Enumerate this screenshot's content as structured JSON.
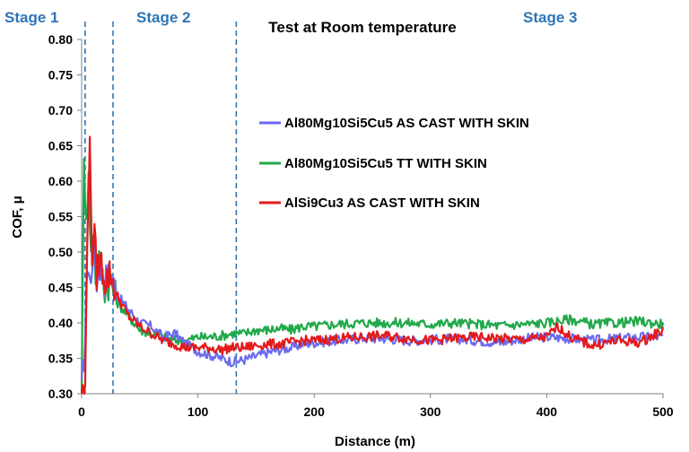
{
  "chart_data": {
    "type": "line",
    "title": "Test at Room temperature",
    "xlabel": "Distance (m)",
    "ylabel": "COF, μ",
    "xlim": [
      0,
      500
    ],
    "ylim": [
      0.3,
      0.8
    ],
    "x_ticks": [
      "0",
      "100",
      "200",
      "300",
      "400",
      "500"
    ],
    "y_ticks": [
      "0.30",
      "0.35",
      "0.40",
      "0.45",
      "0.50",
      "0.55",
      "0.60",
      "0.65",
      "0.70",
      "0.75",
      "0.80"
    ],
    "grid": false,
    "legend_placement": "center-right",
    "stages": [
      {
        "label": "Stage 1",
        "boundary_x": 3
      },
      {
        "label": "Stage  2",
        "boundary_x": 27
      },
      {
        "label": "Stage  3",
        "boundary_x": 133
      }
    ],
    "series": [
      {
        "name": "Al80Mg10Si5Cu5 AS CAST WITH SKIN",
        "color": "#6b6bf0",
        "x": [
          0,
          3,
          5,
          8,
          10,
          13,
          16,
          20,
          25,
          30,
          40,
          50,
          60,
          70,
          80,
          90,
          100,
          110,
          120,
          130,
          140,
          150,
          160,
          170,
          180,
          190,
          200,
          220,
          240,
          260,
          280,
          300,
          320,
          340,
          360,
          380,
          400,
          420,
          440,
          460,
          480,
          500
        ],
        "y": [
          0.3,
          0.38,
          0.49,
          0.45,
          0.52,
          0.46,
          0.48,
          0.46,
          0.47,
          0.44,
          0.42,
          0.4,
          0.395,
          0.38,
          0.385,
          0.37,
          0.36,
          0.355,
          0.35,
          0.345,
          0.348,
          0.353,
          0.358,
          0.362,
          0.365,
          0.37,
          0.372,
          0.375,
          0.378,
          0.378,
          0.375,
          0.376,
          0.378,
          0.375,
          0.372,
          0.378,
          0.38,
          0.378,
          0.375,
          0.378,
          0.38,
          0.38
        ]
      },
      {
        "name": "Al80Mg10Si5Cu5 TT WITH SKIN",
        "color": "#22a84a",
        "x": [
          0,
          2,
          4,
          6,
          8,
          10,
          12,
          15,
          20,
          25,
          30,
          40,
          50,
          60,
          70,
          80,
          90,
          100,
          110,
          120,
          130,
          140,
          150,
          160,
          170,
          180,
          190,
          200,
          220,
          240,
          260,
          280,
          300,
          320,
          340,
          360,
          380,
          400,
          420,
          440,
          460,
          480,
          500
        ],
        "y": [
          0.3,
          0.62,
          0.56,
          0.6,
          0.5,
          0.53,
          0.47,
          0.49,
          0.45,
          0.46,
          0.43,
          0.41,
          0.39,
          0.385,
          0.38,
          0.375,
          0.375,
          0.38,
          0.38,
          0.382,
          0.385,
          0.385,
          0.39,
          0.39,
          0.392,
          0.39,
          0.395,
          0.395,
          0.398,
          0.4,
          0.4,
          0.4,
          0.398,
          0.4,
          0.398,
          0.396,
          0.398,
          0.4,
          0.405,
          0.398,
          0.4,
          0.402,
          0.398
        ]
      },
      {
        "name": "AlSi9Cu3 AS CAST WITH SKIN",
        "color": "#e31a1c",
        "x": [
          0,
          3,
          5,
          7,
          9,
          11,
          13,
          16,
          20,
          25,
          30,
          40,
          50,
          60,
          70,
          80,
          90,
          100,
          110,
          120,
          130,
          140,
          150,
          160,
          170,
          180,
          190,
          200,
          220,
          240,
          260,
          280,
          300,
          320,
          340,
          360,
          380,
          400,
          410,
          420,
          440,
          460,
          480,
          500
        ],
        "y": [
          0.3,
          0.3,
          0.55,
          0.64,
          0.5,
          0.52,
          0.47,
          0.49,
          0.46,
          0.47,
          0.44,
          0.41,
          0.395,
          0.385,
          0.375,
          0.37,
          0.365,
          0.365,
          0.365,
          0.362,
          0.365,
          0.365,
          0.368,
          0.37,
          0.37,
          0.372,
          0.375,
          0.375,
          0.378,
          0.38,
          0.382,
          0.378,
          0.375,
          0.378,
          0.38,
          0.378,
          0.376,
          0.38,
          0.395,
          0.38,
          0.368,
          0.375,
          0.372,
          0.39
        ]
      }
    ]
  }
}
